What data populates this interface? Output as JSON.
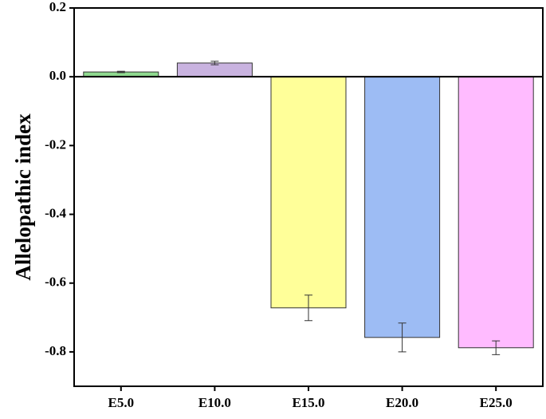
{
  "chart_data": {
    "type": "bar",
    "y_label": "Allelopathic index",
    "categories": [
      "E5.0",
      "E10.0",
      "E15.0",
      "E20.0",
      "E25.0"
    ],
    "values": [
      0.014,
      0.04,
      -0.672,
      -0.758,
      -0.788
    ],
    "errors": [
      0.002,
      0.005,
      0.037,
      0.042,
      0.02
    ],
    "colors": [
      "#8fd98f",
      "#c9b3e0",
      "#ffff99",
      "#9dbcf4",
      "#ffbbff"
    ],
    "ylim": [
      -0.9,
      0.2
    ],
    "yticks": [
      0.2,
      {
        "value": 0,
        "label": "0.0"
      },
      -0.2,
      -0.4,
      -0.6,
      -0.8
    ]
  }
}
